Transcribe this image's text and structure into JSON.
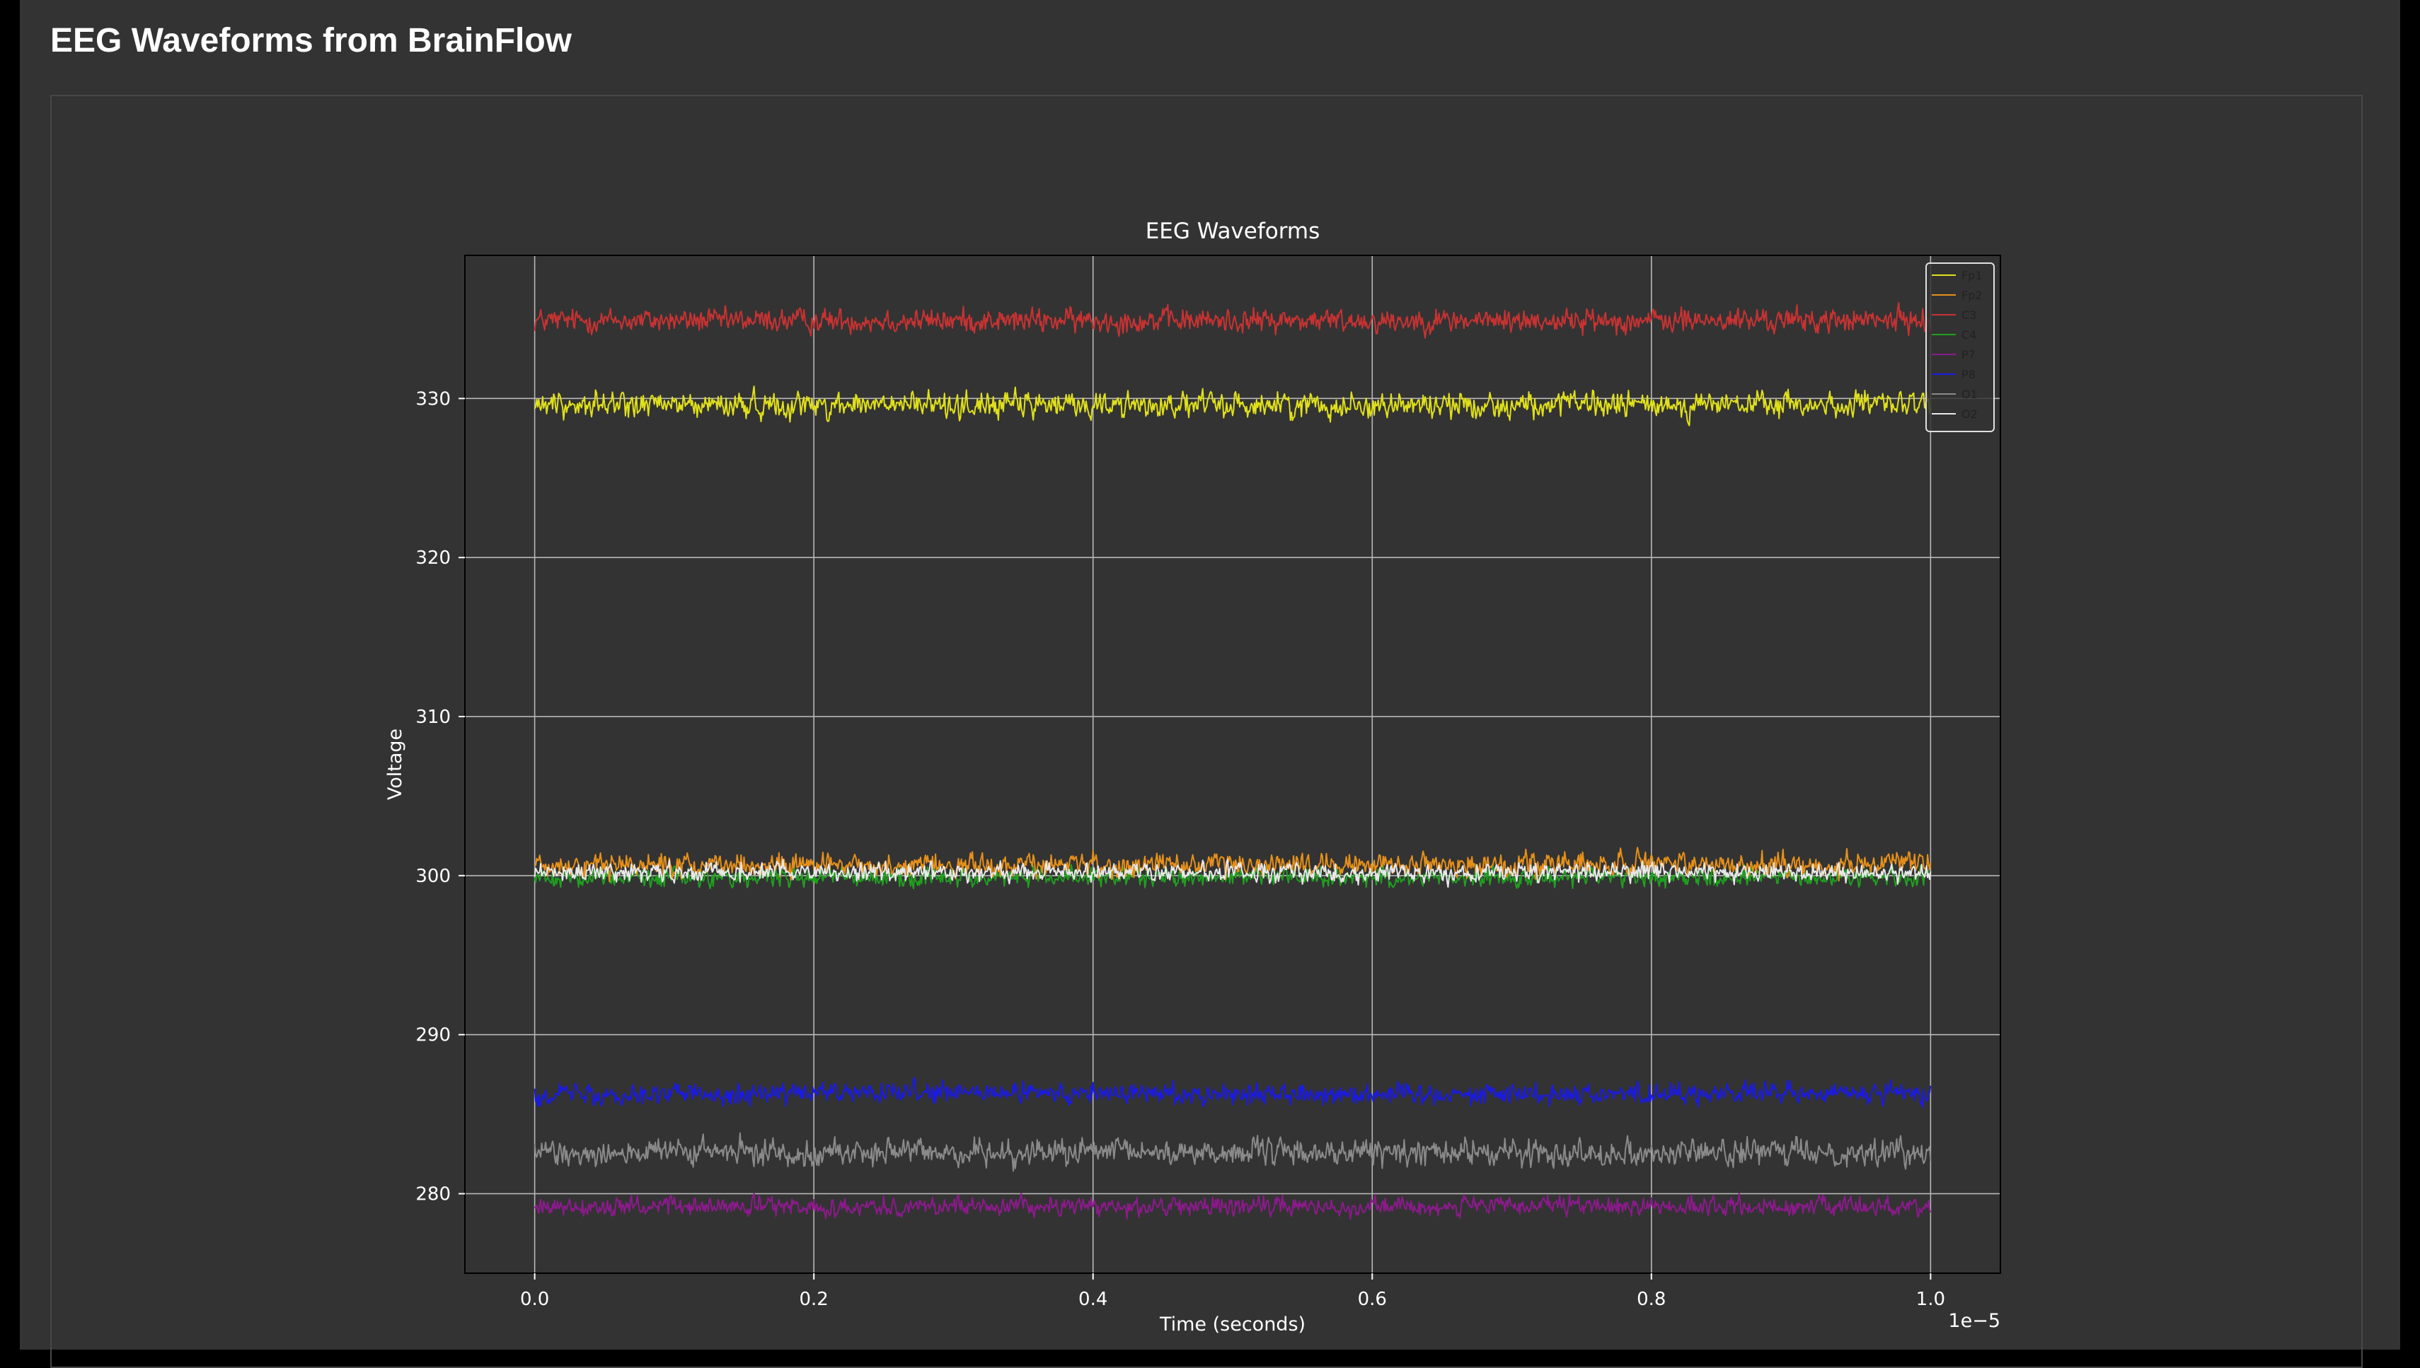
{
  "page": {
    "title": "EEG Waveforms from BrainFlow"
  },
  "chart_data": {
    "type": "line",
    "title": "EEG Waveforms",
    "xlabel": "Time (seconds)",
    "ylabel": "Voltage",
    "x_offset_text": "1e−5",
    "xlim": [
      -0.05,
      1.05
    ],
    "ylim": [
      275,
      339
    ],
    "x_ticks": [
      0.0,
      0.2,
      0.4,
      0.6,
      0.8,
      1.0
    ],
    "x_tick_labels": [
      "0.0",
      "0.2",
      "0.4",
      "0.6",
      "0.8",
      "1.0"
    ],
    "y_ticks": [
      280,
      290,
      300,
      310,
      320,
      330
    ],
    "y_tick_labels": [
      "280",
      "290",
      "300",
      "310",
      "320",
      "330"
    ],
    "grid": true,
    "legend_position": "top-right",
    "x_range": [
      0.0,
      1.0
    ],
    "series": [
      {
        "name": "Fp1",
        "color": "#e0e01a",
        "mean": 329.6,
        "amplitude": 0.55
      },
      {
        "name": "Fp2",
        "color": "#e6901a",
        "mean": 300.7,
        "amplitude": 0.5
      },
      {
        "name": "C3",
        "color": "#c83232",
        "mean": 334.9,
        "amplitude": 0.5
      },
      {
        "name": "C4",
        "color": "#1fa01f",
        "mean": 299.9,
        "amplitude": 0.4
      },
      {
        "name": "P7",
        "color": "#8c1a8c",
        "mean": 279.2,
        "amplitude": 0.4
      },
      {
        "name": "P8",
        "color": "#1a1ae6",
        "mean": 286.3,
        "amplitude": 0.45
      },
      {
        "name": "O1",
        "color": "#8a8a8a",
        "mean": 282.6,
        "amplitude": 0.55
      },
      {
        "name": "O2",
        "color": "#e8e8e8",
        "mean": 300.2,
        "amplitude": 0.4
      }
    ]
  }
}
